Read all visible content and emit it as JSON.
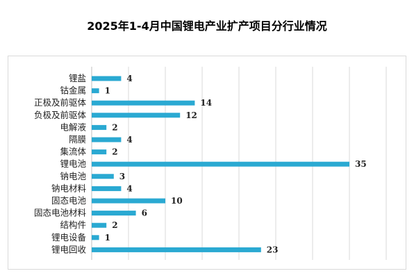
{
  "chart_data": {
    "type": "bar",
    "orientation": "horizontal",
    "title": "2025年1-4月中国锂电产业扩产项目分行业情况",
    "categories": [
      "锂盐",
      "钴金属",
      "正极及前驱体",
      "负极及前驱体",
      "电解液",
      "隔膜",
      "集流体",
      "锂电池",
      "钠电池",
      "钠电材料",
      "固态电池",
      "固态电池材料",
      "结构件",
      "锂电设备",
      "锂电回收"
    ],
    "values": [
      4,
      1,
      14,
      12,
      2,
      4,
      2,
      35,
      3,
      4,
      10,
      6,
      2,
      1,
      23
    ],
    "xlim": [
      0,
      40
    ],
    "grid": true,
    "data_labels": true,
    "bar_color": "#2aa9d2",
    "grid_color": "#d9d9d9",
    "legend": "none"
  }
}
